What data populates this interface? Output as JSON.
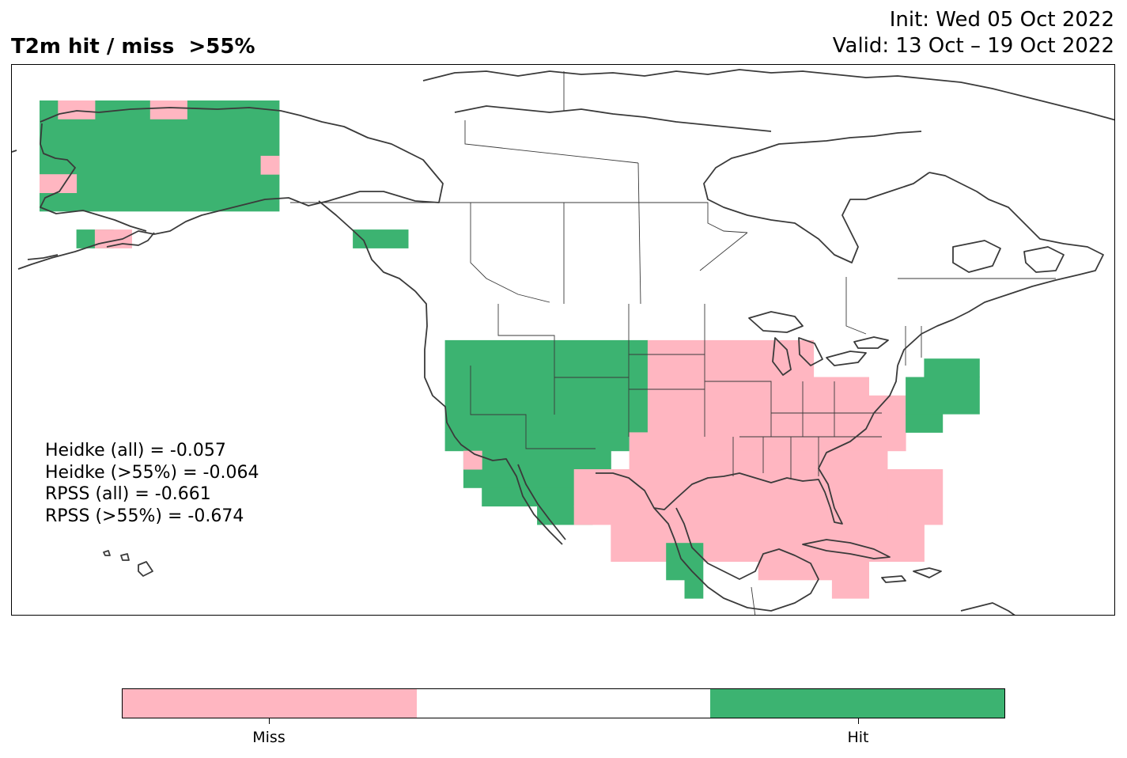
{
  "header": {
    "title": "T2m hit / miss  >55%",
    "init": "Init: Wed 05 Oct 2022",
    "valid": "Valid: 13 Oct – 19 Oct 2022"
  },
  "scores": [
    "Heidke (all) = -0.057",
    "Heidke (>55%) = -0.064",
    "RPSS (all) = -0.661",
    "RPSS (>55%) = -0.674"
  ],
  "colors": {
    "miss": "#ffb6c1",
    "neutral": "#ffffff",
    "hit": "#3cb371",
    "coast": "#3a3a3a",
    "border": "#3a3a3a"
  },
  "colorbar": {
    "segments": [
      "miss",
      "neutral",
      "hit"
    ],
    "labels": [
      "Miss",
      "Hit"
    ]
  }
}
